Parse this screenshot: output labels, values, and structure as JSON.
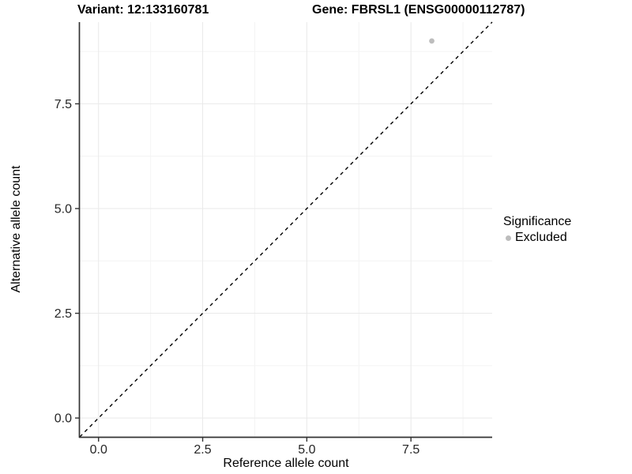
{
  "header": {
    "variant_title": "Variant: 12:133160781",
    "gene_title": "Gene: FBRSL1 (ENSG00000112787)"
  },
  "chart_data": {
    "type": "scatter",
    "xlabel": "Reference allele count",
    "ylabel": "Alternative allele count",
    "xlim": [
      -0.45,
      9.45
    ],
    "ylim": [
      -0.45,
      9.45
    ],
    "x_ticks": [
      0,
      2.5,
      5,
      7.5
    ],
    "y_ticks": [
      0,
      2.5,
      5,
      7.5
    ],
    "x_tick_labels": [
      "0.0",
      "2.5",
      "5.0",
      "7.5"
    ],
    "y_tick_labels": [
      "0.0",
      "2.5",
      "5.0",
      "7.5"
    ],
    "x_minor_ticks": [
      1.25,
      3.75,
      6.25,
      8.75
    ],
    "y_minor_ticks": [
      1.25,
      3.75,
      6.25,
      8.75
    ],
    "grid": "major+minor",
    "series": [
      {
        "name": "Excluded",
        "color": "#bdbdbd",
        "points": [
          {
            "x": 8,
            "y": 9
          }
        ]
      }
    ],
    "reference_line": {
      "type": "identity",
      "equation": "y = x",
      "style": "dashed",
      "color": "#000000"
    },
    "legend": {
      "title": "Significance",
      "position": "right",
      "entries": [
        {
          "label": "Excluded",
          "color": "#bdbdbd"
        }
      ]
    }
  },
  "colors": {
    "background": "#ffffff",
    "grid_major": "#e9e9e9",
    "grid_minor": "#f4f4f4",
    "axis_line": "#333333",
    "tick_mark": "#333333",
    "tick_text": "#262626",
    "title_text": "#000000",
    "point": "#bdbdbd"
  }
}
